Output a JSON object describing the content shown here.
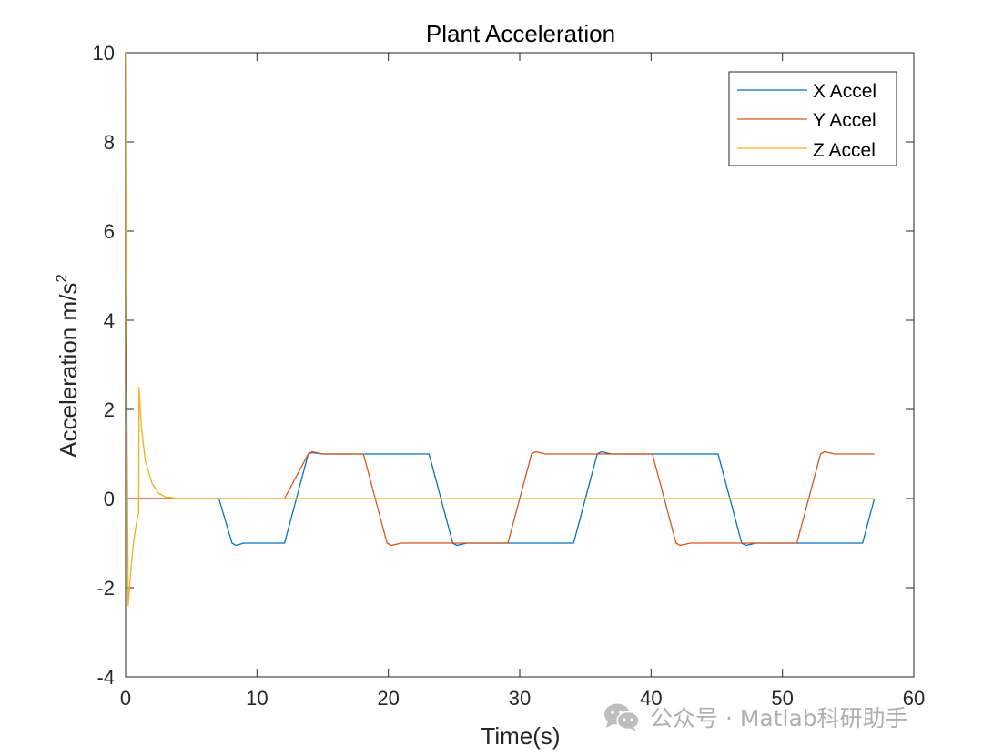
{
  "chart_data": {
    "type": "line",
    "title": "Plant Acceleration",
    "xlabel": "Time(s)",
    "ylabel": "Acceleration m/s",
    "ylabel_superscript": "2",
    "xlim": [
      0,
      60
    ],
    "ylim": [
      -4,
      10
    ],
    "xticks": [
      "0",
      "10",
      "20",
      "30",
      "40",
      "50",
      "60"
    ],
    "yticks": [
      "-4",
      "-2",
      "0",
      "2",
      "4",
      "6",
      "8",
      "10"
    ],
    "grid": false,
    "legend_position": "top-right",
    "series": [
      {
        "name": "X Accel",
        "color": "#0072BD",
        "points": [
          [
            0,
            0
          ],
          [
            7.1,
            0
          ],
          [
            8.1,
            -1.0
          ],
          [
            8.4,
            -1.05
          ],
          [
            9,
            -1.0
          ],
          [
            12.1,
            -1.0
          ],
          [
            13.9,
            1.0
          ],
          [
            14.2,
            1.03
          ],
          [
            15,
            1.0
          ],
          [
            23.1,
            1.0
          ],
          [
            24.9,
            -1.0
          ],
          [
            25.2,
            -1.05
          ],
          [
            26,
            -1.0
          ],
          [
            34.1,
            -1.0
          ],
          [
            35.9,
            1.0
          ],
          [
            36.2,
            1.05
          ],
          [
            37,
            1.0
          ],
          [
            45.1,
            1.0
          ],
          [
            46.9,
            -1.0
          ],
          [
            47.2,
            -1.05
          ],
          [
            48,
            -1.0
          ],
          [
            56.1,
            -1.0
          ],
          [
            57,
            0
          ]
        ]
      },
      {
        "name": "Y Accel",
        "color": "#D95319",
        "points": [
          [
            0,
            0
          ],
          [
            12.1,
            0
          ],
          [
            13.9,
            1.0
          ],
          [
            14.2,
            1.05
          ],
          [
            15,
            1.0
          ],
          [
            18.1,
            1.0
          ],
          [
            19.9,
            -1.0
          ],
          [
            20.2,
            -1.05
          ],
          [
            21,
            -1.0
          ],
          [
            29.1,
            -1.0
          ],
          [
            30.9,
            1.0
          ],
          [
            31.2,
            1.05
          ],
          [
            32,
            1.0
          ],
          [
            40.1,
            1.0
          ],
          [
            41.9,
            -1.0
          ],
          [
            42.2,
            -1.05
          ],
          [
            43,
            -1.0
          ],
          [
            51.1,
            -1.0
          ],
          [
            52.9,
            1.0
          ],
          [
            53.2,
            1.05
          ],
          [
            54,
            1.0
          ],
          [
            57,
            1.0
          ]
        ]
      },
      {
        "name": "Z Accel",
        "color": "#EDB120",
        "points": [
          [
            0,
            10
          ],
          [
            0.03,
            6
          ],
          [
            0.08,
            3
          ],
          [
            0.15,
            0
          ],
          [
            0.2,
            -2.4
          ],
          [
            0.4,
            -1.6
          ],
          [
            0.6,
            -1.0
          ],
          [
            0.8,
            -0.6
          ],
          [
            1.0,
            -0.3
          ],
          [
            1.02,
            2.5
          ],
          [
            1.2,
            1.6
          ],
          [
            1.5,
            0.85
          ],
          [
            2.0,
            0.35
          ],
          [
            2.5,
            0.12
          ],
          [
            3.0,
            0.04
          ],
          [
            4.0,
            0
          ],
          [
            57,
            0
          ]
        ]
      }
    ]
  },
  "watermark": {
    "text": "公众号 · Matlab科研助手",
    "icon": "wechat-icon"
  }
}
